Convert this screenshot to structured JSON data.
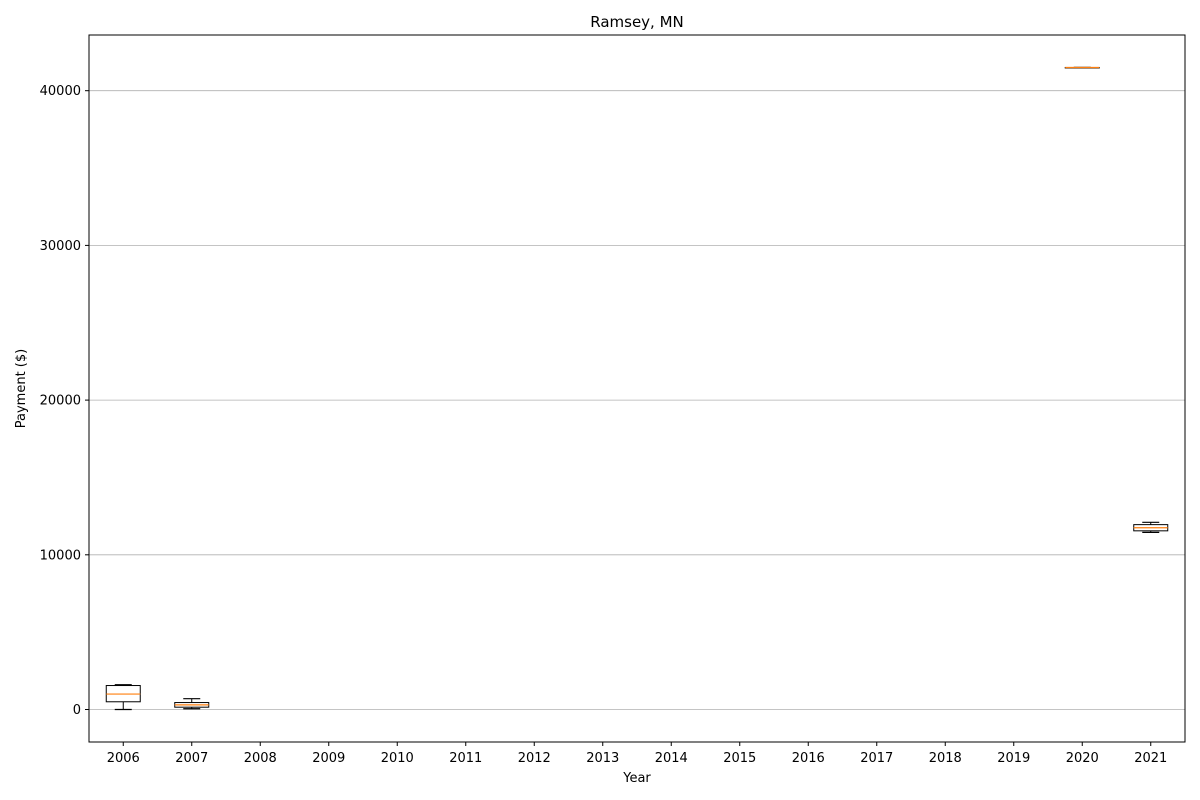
{
  "chart_data": {
    "type": "box",
    "title": "Ramsey, MN",
    "xlabel": "Year",
    "ylabel": "Payment ($)",
    "categories": [
      "2006",
      "2007",
      "2008",
      "2009",
      "2010",
      "2011",
      "2012",
      "2013",
      "2014",
      "2015",
      "2016",
      "2017",
      "2018",
      "2019",
      "2020",
      "2021"
    ],
    "ylim": [
      -2100,
      43600
    ],
    "yticks": [
      0,
      10000,
      20000,
      30000,
      40000
    ],
    "grid": "y",
    "colors": {
      "box": "#000000",
      "median": "#ff7f0e",
      "grid": "#b0b0b0"
    },
    "boxes": [
      {
        "category": "2006",
        "whislo": 0,
        "q1": 500,
        "med": 1000,
        "q3": 1550,
        "whishi": 1600
      },
      {
        "category": "2007",
        "whislo": 50,
        "q1": 150,
        "med": 300,
        "q3": 450,
        "whishi": 700
      },
      {
        "category": "2020",
        "whislo": 41500,
        "q1": 41500,
        "med": 41500,
        "q3": 41500,
        "whishi": 41500
      },
      {
        "category": "2021",
        "whislo": 11450,
        "q1": 11550,
        "med": 11750,
        "q3": 11950,
        "whishi": 12100
      }
    ]
  }
}
